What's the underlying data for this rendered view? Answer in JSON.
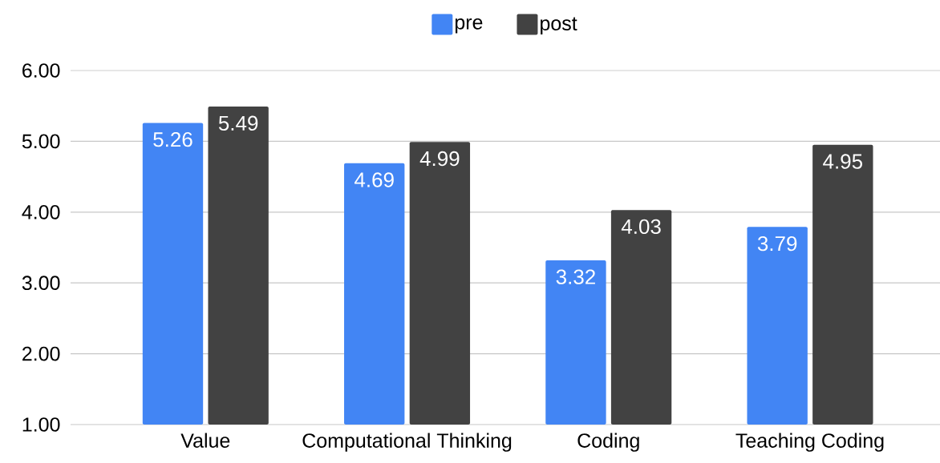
{
  "chart_data": {
    "type": "bar",
    "categories": [
      "Value",
      "Computational Thinking",
      "Coding",
      "Teaching Coding"
    ],
    "series": [
      {
        "name": "pre",
        "color": "#4285f4",
        "values": [
          5.26,
          4.69,
          3.32,
          3.79
        ]
      },
      {
        "name": "post",
        "color": "#424242",
        "values": [
          5.49,
          4.99,
          4.03,
          4.95
        ]
      }
    ],
    "ylim": [
      1,
      6
    ],
    "yticks": [
      {
        "value": 1,
        "label": "1.00"
      },
      {
        "value": 2,
        "label": "2.00"
      },
      {
        "value": 3,
        "label": "3.00"
      },
      {
        "value": 4,
        "label": "4.00"
      },
      {
        "value": 5,
        "label": "5.00"
      },
      {
        "value": 6,
        "label": "6.00"
      }
    ],
    "grid": "y",
    "legend": "top",
    "data_labels": true
  }
}
